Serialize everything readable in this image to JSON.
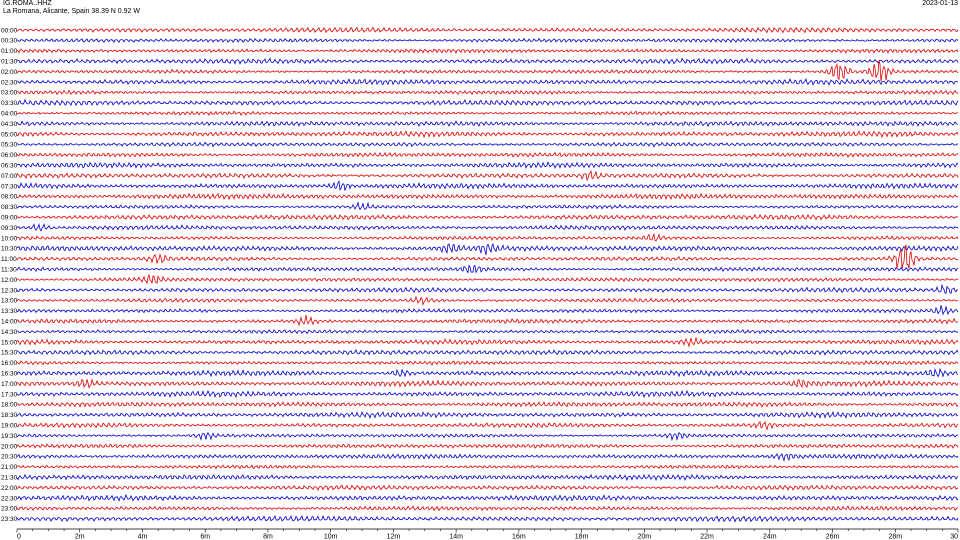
{
  "header": {
    "station": "IG.ROMA..HHZ",
    "location": "La Romana, Alicante, Spain  38.39 N 0.92 W",
    "date": "2023-01-13"
  },
  "chart_data": {
    "type": "line",
    "title": "",
    "xlabel": "",
    "ylabel": "",
    "xlim": [
      0,
      30
    ],
    "x_tick_labels": [
      "0",
      "2m",
      "4m",
      "6m",
      "8m",
      "10m",
      "12m",
      "14m",
      "16m",
      "18m",
      "20m",
      "22m",
      "24m",
      "26m",
      "28m",
      "30"
    ],
    "x_tick_values": [
      0,
      2,
      4,
      6,
      8,
      10,
      12,
      14,
      16,
      18,
      20,
      22,
      24,
      26,
      28,
      30
    ],
    "row_labels": [
      "00:00",
      "00:30",
      "01:00",
      "01:30",
      "02:00",
      "02:30",
      "03:00",
      "03:30",
      "04:00",
      "04:30",
      "05:00",
      "05:30",
      "06:00",
      "06:30",
      "07:00",
      "07:30",
      "08:00",
      "08:30",
      "09:00",
      "09:30",
      "10:00",
      "10:30",
      "11:00",
      "11:30",
      "12:00",
      "12:30",
      "13:00",
      "13:30",
      "14:00",
      "14:30",
      "15:00",
      "15:30",
      "16:00",
      "16:30",
      "17:00",
      "17:30",
      "18:00",
      "18:30",
      "19:00",
      "19:30",
      "20:00",
      "20:30",
      "21:00",
      "21:30",
      "22:00",
      "22:30",
      "23:00",
      "23:30"
    ],
    "trace_colors": [
      "#e00000",
      "#0000cc"
    ],
    "grid": false,
    "events": [
      {
        "row": "02:00",
        "minute": 26.2,
        "amplitude": 5
      },
      {
        "row": "02:00",
        "minute": 27.5,
        "amplitude": 6
      },
      {
        "row": "07:00",
        "minute": 18.3,
        "amplitude": 2
      },
      {
        "row": "07:30",
        "minute": 10.3,
        "amplitude": 2
      },
      {
        "row": "08:30",
        "minute": 11.0,
        "amplitude": 1.6
      },
      {
        "row": "09:30",
        "minute": 0.7,
        "amplitude": 1.6
      },
      {
        "row": "10:00",
        "minute": 20.3,
        "amplitude": 1.6
      },
      {
        "row": "10:30",
        "minute": 13.8,
        "amplitude": 2
      },
      {
        "row": "10:30",
        "minute": 15.0,
        "amplitude": 2
      },
      {
        "row": "11:00",
        "minute": 4.5,
        "amplitude": 2
      },
      {
        "row": "11:00",
        "minute": 28.3,
        "amplitude": 8
      },
      {
        "row": "11:30",
        "minute": 14.5,
        "amplitude": 2
      },
      {
        "row": "12:00",
        "minute": 4.3,
        "amplitude": 2
      },
      {
        "row": "12:30",
        "minute": 29.6,
        "amplitude": 2
      },
      {
        "row": "13:00",
        "minute": 12.9,
        "amplitude": 1.6
      },
      {
        "row": "13:30",
        "minute": 29.5,
        "amplitude": 2
      },
      {
        "row": "14:00",
        "minute": 9.2,
        "amplitude": 2
      },
      {
        "row": "15:00",
        "minute": 21.5,
        "amplitude": 1.6
      },
      {
        "row": "16:30",
        "minute": 12.2,
        "amplitude": 1.6
      },
      {
        "row": "16:30",
        "minute": 29.3,
        "amplitude": 1.6
      },
      {
        "row": "17:00",
        "minute": 2.2,
        "amplitude": 2
      },
      {
        "row": "17:00",
        "minute": 25.0,
        "amplitude": 1.6
      },
      {
        "row": "19:00",
        "minute": 23.8,
        "amplitude": 1.6
      },
      {
        "row": "19:30",
        "minute": 6.0,
        "amplitude": 1.6
      },
      {
        "row": "19:30",
        "minute": 21.0,
        "amplitude": 1.6
      },
      {
        "row": "20:30",
        "minute": 24.5,
        "amplitude": 1.4
      }
    ]
  }
}
